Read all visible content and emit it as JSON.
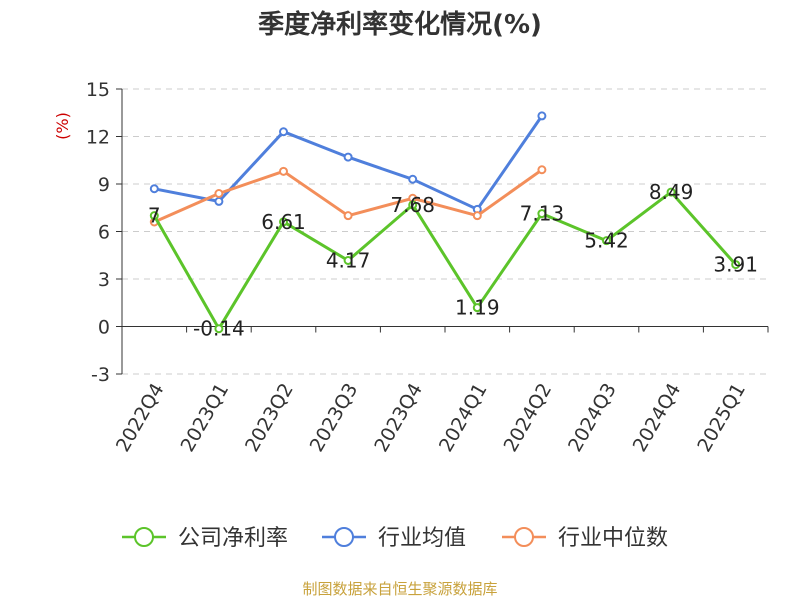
{
  "chart_data": {
    "type": "line",
    "title": "季度净利率变化情况(%)",
    "ylabel": "(%)",
    "xlabel": "",
    "categories": [
      "2022Q4",
      "2023Q1",
      "2023Q2",
      "2023Q3",
      "2023Q4",
      "2024Q1",
      "2024Q2",
      "2024Q3",
      "2024Q4",
      "2025Q1"
    ],
    "ylim": [
      -3,
      15
    ],
    "yticks": [
      -3,
      0,
      3,
      6,
      9,
      12,
      15
    ],
    "grid": true,
    "legend_position": "bottom",
    "series": [
      {
        "name": "公司净利率",
        "color": "#5cc42a",
        "values": [
          7,
          -0.14,
          6.61,
          4.17,
          7.68,
          1.19,
          7.13,
          5.42,
          8.49,
          3.91
        ],
        "labels": [
          "7",
          "-0.14",
          "6.61",
          "4.17",
          "7.68",
          "1.19",
          "7.13",
          "5.42",
          "8.49",
          "3.91"
        ]
      },
      {
        "name": "行业均值",
        "color": "#4f7fdc",
        "values": [
          8.7,
          7.9,
          12.3,
          10.7,
          9.3,
          7.4,
          13.3,
          null,
          null,
          null
        ]
      },
      {
        "name": "行业中位数",
        "color": "#f38e5a",
        "values": [
          6.6,
          8.4,
          9.8,
          7.0,
          8.1,
          7.0,
          9.9,
          null,
          null,
          null
        ]
      }
    ]
  },
  "footer": {
    "source": "制图数据来自恒生聚源数据库"
  }
}
